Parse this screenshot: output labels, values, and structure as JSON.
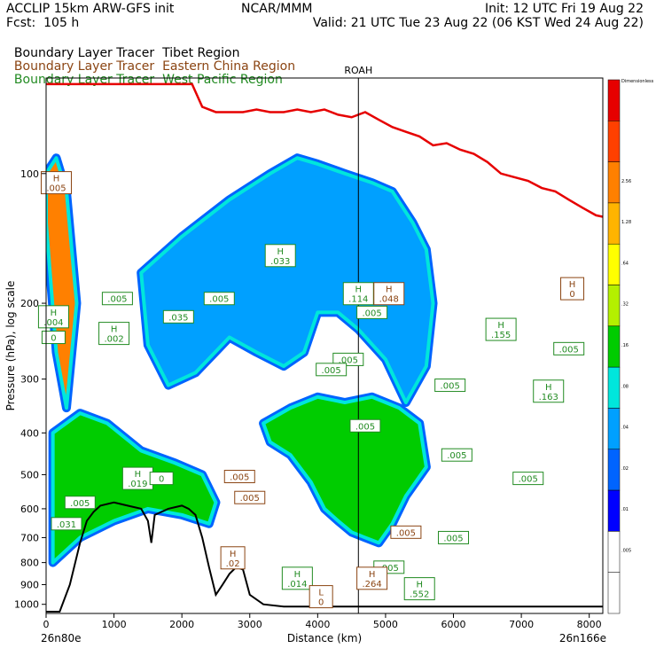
{
  "header": {
    "left1": "ACCLIP 15km ARW-GFS init",
    "left2": "Fcst:  105 h",
    "center": "NCAR/MMM",
    "right1": "Init: 12 UTC Fri 19 Aug 22",
    "right2": "Valid: 21 UTC Tue 23 Aug 22 (06 KST Wed 24 Aug 22)"
  },
  "legend": {
    "items": [
      {
        "prefix": "Boundary Layer Tracer",
        "region": "Tibet Region",
        "color": "#000000",
        "prefix_color": "#000000"
      },
      {
        "prefix": "Boundary Layer Tracer",
        "region": "Eastern China Region",
        "color": "#8B4513",
        "prefix_color": "#8B4513"
      },
      {
        "prefix": "Boundary Layer Tracer",
        "region": "West Pacific Region",
        "color": "#228B22",
        "prefix_color": "#228B22"
      }
    ]
  },
  "chart_data": {
    "type": "cross-section",
    "xlabel": "Distance (km)",
    "ylabel": "Pressure (hPa), log scale",
    "xlim": [
      0,
      8200
    ],
    "ylim": [
      1050,
      60
    ],
    "xticks": [
      0,
      1000,
      2000,
      3000,
      4000,
      5000,
      6000,
      7000,
      8000
    ],
    "yticks": [
      100,
      200,
      300,
      400,
      500,
      600,
      700,
      800,
      900,
      1000
    ],
    "endpoints": {
      "left": "26n80e",
      "right": "26n166e"
    },
    "marker": {
      "label": "ROAH",
      "x": 4600
    },
    "colorbar": {
      "colors": [
        "#ffffff",
        "#ffffff",
        "#0000ff",
        "#0064ff",
        "#00a0ff",
        "#00e6dc",
        "#00cc00",
        "#b4f000",
        "#ffff00",
        "#ffb400",
        "#ff8000",
        "#ff4000",
        "#e60000"
      ],
      "labels": [
        ".005",
        ".01",
        ".02",
        ".04",
        ".08",
        ".16",
        ".32",
        ".64",
        "1.28",
        "2.56",
        "Dimensionless"
      ]
    },
    "tropopause_red": {
      "x": [
        0,
        200,
        500,
        800,
        1100,
        1400,
        1700,
        2000,
        2150,
        2300,
        2500,
        2700,
        2900,
        3100,
        3300,
        3500,
        3700,
        3900,
        4100,
        4300,
        4500,
        4700,
        4900,
        5100,
        5300,
        5500,
        5700,
        5900,
        6100,
        6300,
        6500,
        6700,
        6900,
        7100,
        7300,
        7500,
        7700,
        7900,
        8100,
        8200
      ],
      "p": [
        62,
        62,
        62,
        62,
        62,
        62,
        62,
        62,
        62,
        70,
        72,
        72,
        72,
        71,
        72,
        72,
        71,
        72,
        71,
        73,
        74,
        72,
        75,
        78,
        80,
        82,
        86,
        85,
        88,
        90,
        94,
        100,
        102,
        104,
        108,
        110,
        115,
        120,
        125,
        126
      ]
    },
    "terrain_black": {
      "x": [
        0,
        200,
        350,
        500,
        600,
        700,
        800,
        1000,
        1200,
        1400,
        1500,
        1550,
        1600,
        1800,
        2000,
        2100,
        2200,
        2300,
        2400,
        2500,
        2600,
        2700,
        2800,
        2900,
        3000,
        3200,
        3500,
        4000,
        4500,
        5000,
        5500,
        6000,
        7000,
        8000,
        8200
      ],
      "p": [
        1040,
        1040,
        900,
        720,
        640,
        610,
        590,
        580,
        590,
        600,
        640,
        720,
        620,
        600,
        590,
        600,
        620,
        700,
        820,
        950,
        900,
        850,
        820,
        830,
        950,
        1000,
        1012,
        1012,
        1012,
        1012,
        1012,
        1012,
        1012,
        1012,
        1012
      ]
    },
    "filled_regions": [
      {
        "name": "tibet-plume",
        "level": ".64",
        "x": [
          0,
          150,
          300,
          450,
          300,
          150,
          0
        ],
        "p": [
          100,
          92,
          110,
          200,
          350,
          260,
          130
        ]
      },
      {
        "name": "upper-plume",
        "level": ".08",
        "x": [
          1400,
          2000,
          2700,
          3300,
          3700,
          4000,
          4400,
          4800,
          5100,
          5400,
          5600,
          5700,
          5600,
          5300,
          5000,
          4600,
          4300,
          4000,
          3800,
          3500,
          3100,
          2700,
          2200,
          1800,
          1500
        ],
        "p": [
          170,
          140,
          115,
          100,
          92,
          95,
          100,
          105,
          110,
          130,
          150,
          200,
          280,
          340,
          270,
          230,
          210,
          210,
          260,
          280,
          260,
          240,
          290,
          310,
          250
        ]
      },
      {
        "name": "lower-plume",
        "level": ".16",
        "x": [
          3200,
          3600,
          4000,
          4400,
          4800,
          5200,
          5500,
          5600,
          5300,
          5100,
          4900,
          4700,
          4500,
          4300,
          4100,
          3900,
          3600,
          3300
        ],
        "p": [
          380,
          350,
          330,
          340,
          330,
          350,
          380,
          480,
          560,
          650,
          720,
          700,
          680,
          640,
          600,
          520,
          450,
          420
        ]
      },
      {
        "name": "west-column",
        "level": ".16",
        "x": [
          100,
          500,
          900,
          1400,
          1900,
          2300,
          2500,
          2400,
          2000,
          1500,
          1000,
          500,
          100
        ],
        "p": [
          400,
          360,
          380,
          440,
          470,
          500,
          580,
          650,
          620,
          600,
          640,
          700,
          800
        ]
      }
    ],
    "labels": [
      {
        "text": "H",
        "value": ".005",
        "x": 150,
        "p": 105,
        "color": "#8B4513"
      },
      {
        "text": "H",
        "value": ".033",
        "x": 3450,
        "p": 155,
        "color": "#228B22"
      },
      {
        "text": "",
        "value": ".035",
        "x": 1950,
        "p": 215,
        "color": "#228B22"
      },
      {
        "text": "",
        "value": ".005",
        "x": 2550,
        "p": 195,
        "color": "#228B22"
      },
      {
        "text": "",
        "value": ".005",
        "x": 1050,
        "p": 195,
        "color": "#228B22"
      },
      {
        "text": "H",
        "value": ".114",
        "x": 4600,
        "p": 190,
        "color": "#228B22"
      },
      {
        "text": "H",
        "value": ".048",
        "x": 5050,
        "p": 190,
        "color": "#8B4513"
      },
      {
        "text": "",
        "value": ".005",
        "x": 4800,
        "p": 210,
        "color": "#228B22"
      },
      {
        "text": "H",
        "value": ".004",
        "x": 110,
        "p": 215,
        "color": "#228B22"
      },
      {
        "text": "",
        "value": "0",
        "x": 110,
        "p": 240,
        "color": "#228B22"
      },
      {
        "text": "H",
        "value": ".002",
        "x": 1000,
        "p": 235,
        "color": "#228B22"
      },
      {
        "text": "",
        "value": ".005",
        "x": 4450,
        "p": 270,
        "color": "#228B22"
      },
      {
        "text": "",
        "value": ".005",
        "x": 4200,
        "p": 285,
        "color": "#228B22"
      },
      {
        "text": "",
        "value": ".005",
        "x": 5950,
        "p": 310,
        "color": "#228B22"
      },
      {
        "text": "H",
        "value": ".155",
        "x": 6700,
        "p": 230,
        "color": "#228B22"
      },
      {
        "text": "",
        "value": ".005",
        "x": 7700,
        "p": 255,
        "color": "#228B22"
      },
      {
        "text": "H",
        "value": ".163",
        "x": 7400,
        "p": 320,
        "color": "#228B22"
      },
      {
        "text": "H",
        "value": "0",
        "x": 7750,
        "p": 185,
        "color": "#8B4513"
      },
      {
        "text": "",
        "value": ".005",
        "x": 4700,
        "p": 385,
        "color": "#228B22"
      },
      {
        "text": "",
        "value": ".005",
        "x": 6050,
        "p": 450,
        "color": "#228B22"
      },
      {
        "text": "",
        "value": ".005",
        "x": 7100,
        "p": 510,
        "color": "#228B22"
      },
      {
        "text": "H",
        "value": ".019",
        "x": 1350,
        "p": 510,
        "color": "#228B22"
      },
      {
        "text": "",
        "value": "0",
        "x": 1700,
        "p": 510,
        "color": "#228B22"
      },
      {
        "text": "",
        "value": ".005",
        "x": 2850,
        "p": 505,
        "color": "#8B4513"
      },
      {
        "text": "",
        "value": ".005",
        "x": 3000,
        "p": 565,
        "color": "#8B4513"
      },
      {
        "text": "",
        "value": ".005",
        "x": 500,
        "p": 580,
        "color": "#228B22"
      },
      {
        "text": "",
        "value": ".031",
        "x": 300,
        "p": 650,
        "color": "#228B22"
      },
      {
        "text": "",
        "value": ".005",
        "x": 5300,
        "p": 680,
        "color": "#8B4513"
      },
      {
        "text": "",
        "value": ".005",
        "x": 6000,
        "p": 700,
        "color": "#228B22"
      },
      {
        "text": "H",
        "value": ".02",
        "x": 2750,
        "p": 780,
        "color": "#8B4513"
      },
      {
        "text": "",
        "value": ".005",
        "x": 5050,
        "p": 820,
        "color": "#228B22"
      },
      {
        "text": "H",
        "value": ".014",
        "x": 3700,
        "p": 870,
        "color": "#228B22"
      },
      {
        "text": "H",
        "value": ".264",
        "x": 4800,
        "p": 870,
        "color": "#8B4513"
      },
      {
        "text": "H",
        "value": ".552",
        "x": 5500,
        "p": 920,
        "color": "#228B22"
      },
      {
        "text": "L",
        "value": "0",
        "x": 4050,
        "p": 960,
        "color": "#8B4513"
      }
    ]
  }
}
